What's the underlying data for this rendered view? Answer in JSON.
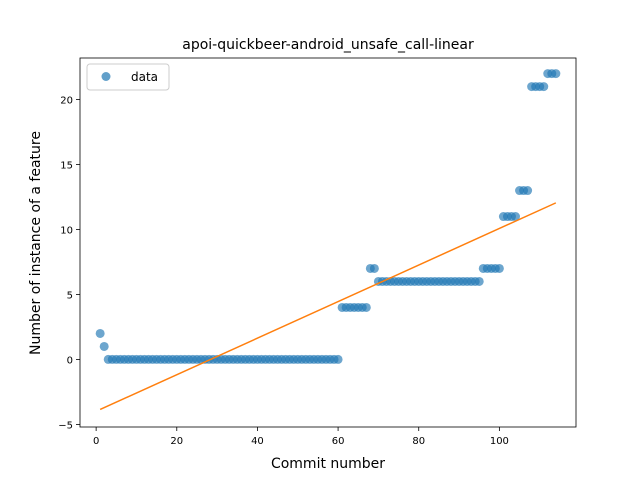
{
  "chart_data": {
    "type": "scatter",
    "title": "apoi-quickbeer-android_unsafe_call-linear",
    "xlabel": "Commit number",
    "ylabel": "Number of instance of a feature",
    "xlim": [
      -4,
      119
    ],
    "ylim": [
      -5.2,
      23.2
    ],
    "xticks": [
      0,
      20,
      40,
      60,
      80,
      100
    ],
    "yticks": [
      -5,
      0,
      5,
      10,
      15,
      20
    ],
    "grid": false,
    "legend": {
      "placement": "top-left",
      "entries": [
        "data"
      ]
    },
    "series": [
      {
        "name": "data",
        "kind": "scatter",
        "color": "#1f77b4",
        "x": [
          1,
          2,
          3,
          4,
          5,
          6,
          7,
          8,
          9,
          10,
          11,
          12,
          13,
          14,
          15,
          16,
          17,
          18,
          19,
          20,
          21,
          22,
          23,
          24,
          25,
          26,
          27,
          28,
          29,
          30,
          31,
          32,
          33,
          34,
          35,
          36,
          37,
          38,
          39,
          40,
          41,
          42,
          43,
          44,
          45,
          46,
          47,
          48,
          49,
          50,
          51,
          52,
          53,
          54,
          55,
          56,
          57,
          58,
          59,
          60,
          61,
          62,
          63,
          64,
          65,
          66,
          67,
          68,
          69,
          70,
          71,
          72,
          73,
          74,
          75,
          76,
          77,
          78,
          79,
          80,
          81,
          82,
          83,
          84,
          85,
          86,
          87,
          88,
          89,
          90,
          91,
          92,
          93,
          94,
          95,
          96,
          97,
          98,
          99,
          100,
          101,
          102,
          103,
          104,
          105,
          106,
          107,
          108,
          109,
          110,
          111,
          112,
          113,
          114
        ],
        "y": [
          2,
          1,
          0,
          0,
          0,
          0,
          0,
          0,
          0,
          0,
          0,
          0,
          0,
          0,
          0,
          0,
          0,
          0,
          0,
          0,
          0,
          0,
          0,
          0,
          0,
          0,
          0,
          0,
          0,
          0,
          0,
          0,
          0,
          0,
          0,
          0,
          0,
          0,
          0,
          0,
          0,
          0,
          0,
          0,
          0,
          0,
          0,
          0,
          0,
          0,
          0,
          0,
          0,
          0,
          0,
          0,
          0,
          0,
          0,
          0,
          4,
          4,
          4,
          4,
          4,
          4,
          4,
          7,
          7,
          6,
          6,
          6,
          6,
          6,
          6,
          6,
          6,
          6,
          6,
          6,
          6,
          6,
          6,
          6,
          6,
          6,
          6,
          6,
          6,
          6,
          6,
          6,
          6,
          6,
          6,
          7,
          7,
          7,
          7,
          7,
          11,
          11,
          11,
          11,
          13,
          13,
          13,
          21,
          21,
          21,
          21,
          22,
          22,
          22
        ]
      },
      {
        "name": "",
        "kind": "line",
        "color": "#ff7f0e",
        "x": [
          1,
          114
        ],
        "y": [
          -3.85,
          12.05
        ]
      }
    ]
  }
}
